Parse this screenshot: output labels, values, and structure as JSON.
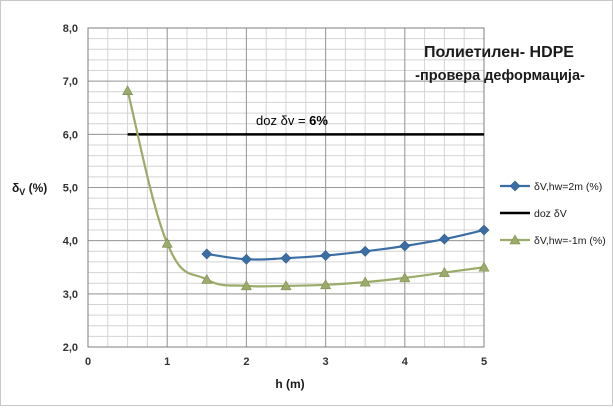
{
  "chart_data": {
    "type": "line",
    "title": "Полиетилен- HDPE",
    "subtitle": "-провера деформација-",
    "xlabel": "h (m)",
    "ylabel_main": "δ",
    "ylabel_sub": "V",
    "ylabel_unit": " (%)",
    "xlim": [
      0,
      5
    ],
    "ylim": [
      2.0,
      8.0
    ],
    "x_ticks": [
      "0",
      "1",
      "2",
      "3",
      "4",
      "5"
    ],
    "x_tick_values": [
      0,
      1,
      2,
      3,
      4,
      5
    ],
    "y_ticks": [
      "2,0",
      "3,0",
      "4,0",
      "5,0",
      "6,0",
      "7,0",
      "8,0"
    ],
    "y_tick_values": [
      2,
      3,
      4,
      5,
      6,
      7,
      8
    ],
    "grid": true,
    "legend_position": "right",
    "annotation": {
      "text_prefix": "doz δv = ",
      "text_value": "6%",
      "x": 3.0,
      "y": 6.0
    },
    "series": [
      {
        "name": "δV,hw=2m (%)",
        "color": "#3a6ea5",
        "marker": "diamond",
        "x": [
          1.5,
          2.0,
          2.5,
          3.0,
          3.5,
          4.0,
          4.5,
          5.0
        ],
        "y": [
          3.75,
          3.65,
          3.67,
          3.72,
          3.8,
          3.9,
          4.03,
          4.2
        ]
      },
      {
        "name": "doz δV",
        "color": "#000000",
        "marker": "none",
        "x": [
          0.5,
          5.0
        ],
        "y": [
          6.0,
          6.0
        ]
      },
      {
        "name": "δV,hw=-1m (%)",
        "color": "#9bab6a",
        "marker": "triangle",
        "x": [
          0.5,
          1.0,
          1.5,
          2.0,
          2.5,
          3.0,
          3.5,
          4.0,
          4.5,
          5.0
        ],
        "y": [
          6.82,
          3.95,
          3.27,
          3.15,
          3.15,
          3.17,
          3.22,
          3.3,
          3.4,
          3.5
        ]
      }
    ]
  }
}
